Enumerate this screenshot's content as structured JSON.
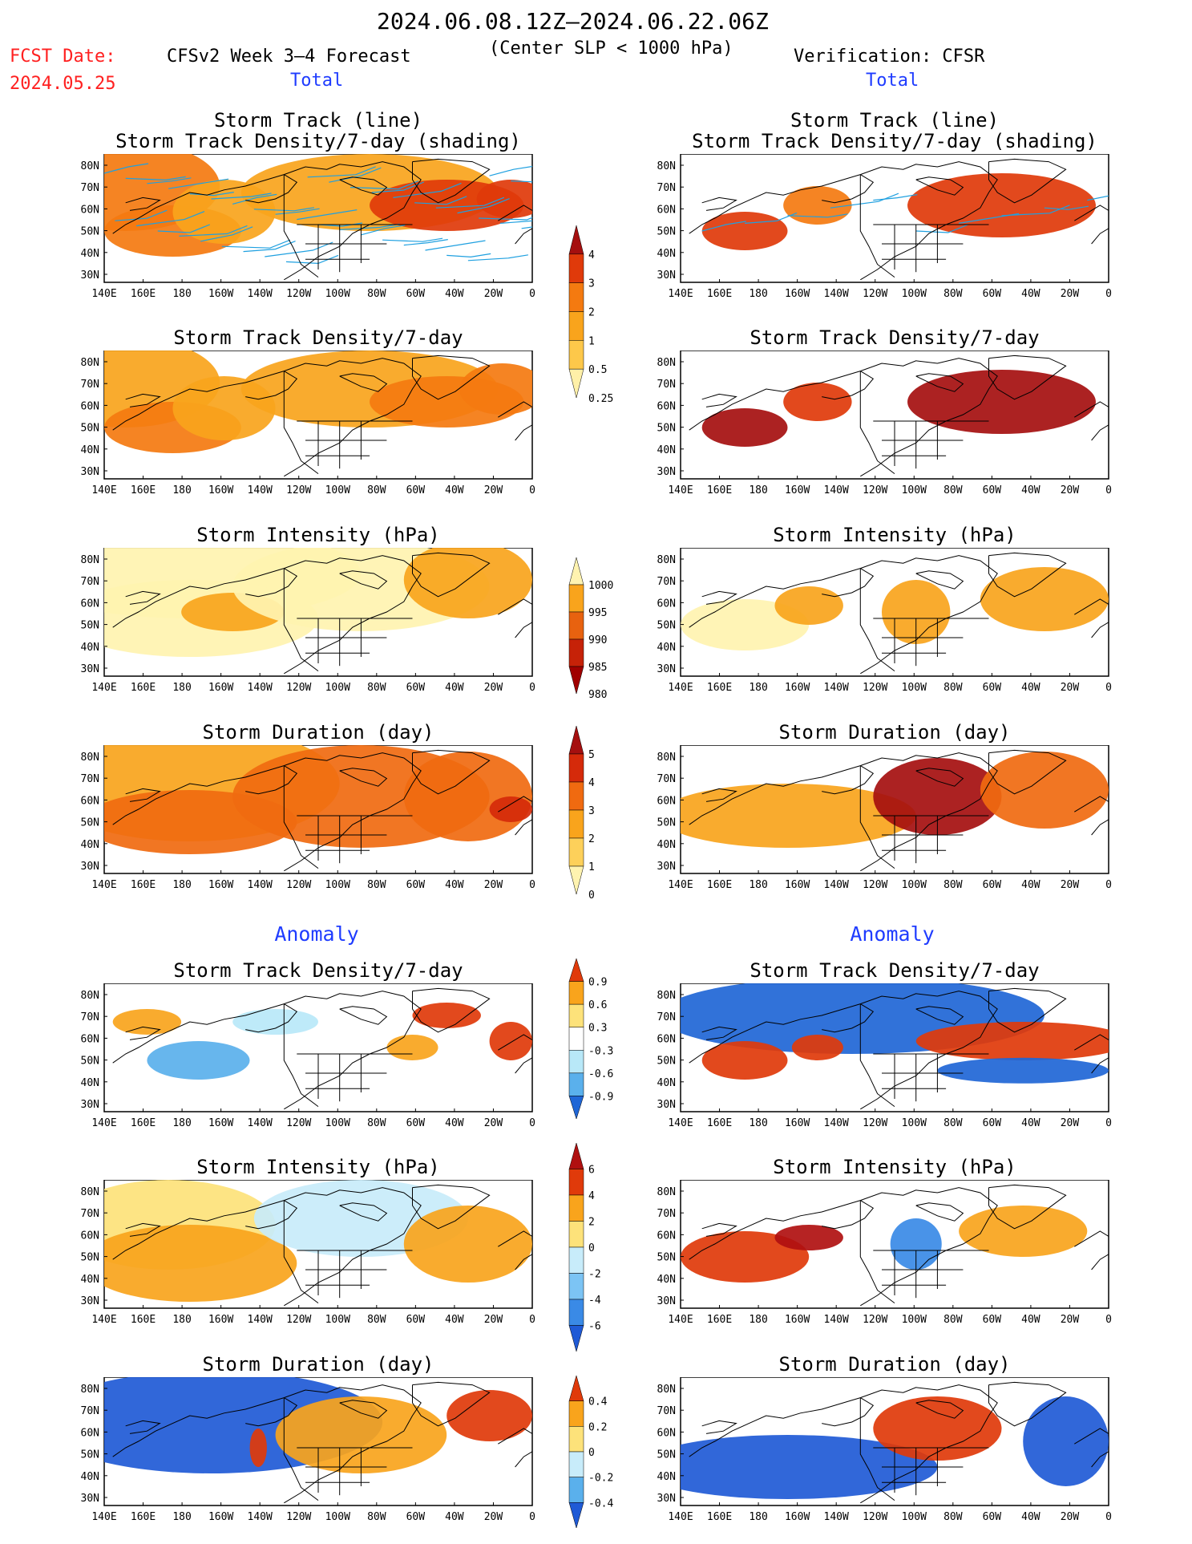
{
  "header": {
    "date_range": "2024.06.08.12Z–2024.06.22.06Z",
    "subtitle": "(Center SLP < 1000 hPa)",
    "fcst_label": "FCST Date:",
    "fcst_date": "2024.05.25",
    "forecast_title": "CFSv2 Week 3–4 Forecast",
    "verification": "Verification: CFSR",
    "total_left": "Total",
    "total_right": "Total",
    "anomaly_left": "Anomaly",
    "anomaly_right": "Anomaly"
  },
  "panel_titles": {
    "track_line": "Storm Track (line)",
    "track_density_shading": "Storm Track Density/7-day (shading)",
    "track_density": "Storm Track Density/7-day",
    "intensity": "Storm Intensity (hPa)",
    "duration": "Storm Duration (day)"
  },
  "axes": {
    "lat_labels": [
      "80N",
      "70N",
      "60N",
      "50N",
      "40N",
      "30N"
    ],
    "lon_labels": [
      "140E",
      "160E",
      "180",
      "160W",
      "140W",
      "120W",
      "100W",
      "80W",
      "60W",
      "40W",
      "20W",
      "0"
    ]
  },
  "colorbars": {
    "density": {
      "labels": [
        "4",
        "3",
        "2",
        "1",
        "0.5",
        "0.25"
      ],
      "colors": [
        "#a50f0f",
        "#e03a0a",
        "#f47a10",
        "#f9a41c",
        "#fdc84a",
        "#fff0a8"
      ]
    },
    "intensity": {
      "labels": [
        "1000",
        "995",
        "990",
        "985",
        "980"
      ],
      "colors": [
        "#fff3b0",
        "#f9a41c",
        "#e8620f",
        "#c62208",
        "#a00000"
      ]
    },
    "duration": {
      "labels": [
        "5",
        "4",
        "3",
        "2",
        "1",
        "0"
      ],
      "colors": [
        "#a50f0f",
        "#d52a0a",
        "#f06a10",
        "#f9a41c",
        "#fdd05a",
        "#fff3b0"
      ]
    },
    "anom_density": {
      "labels": [
        "0.9",
        "0.6",
        "0.3",
        "-0.3",
        "-0.6",
        "-0.9"
      ],
      "colors": [
        "#e03a0a",
        "#f9a41c",
        "#fde27a",
        "#ffffff",
        "#b8e8f8",
        "#5ab0ec",
        "#1f66d6"
      ]
    },
    "anom_intensity": {
      "labels": [
        "6",
        "4",
        "2",
        "0",
        "-2",
        "-4",
        "-6"
      ],
      "colors": [
        "#b01010",
        "#e03a0a",
        "#f9a41c",
        "#fde27a",
        "#c8ecfa",
        "#7cc4f4",
        "#3a8ae6",
        "#1f5ad6"
      ]
    },
    "anom_duration": {
      "labels": [
        "0.4",
        "0.2",
        "0",
        "-0.2",
        "-0.4"
      ],
      "colors": [
        "#e03a0a",
        "#f9a41c",
        "#fde27a",
        "#c8ecfa",
        "#5ab0ec",
        "#1f5ad6"
      ]
    }
  },
  "palette": {
    "ocean_bg": "#ffffff",
    "land_line": "#000000",
    "track_line": "#1fa0e0"
  }
}
